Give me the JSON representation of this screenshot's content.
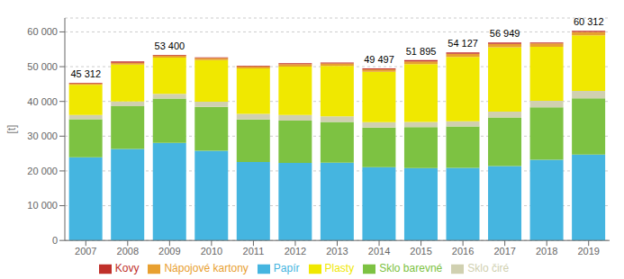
{
  "chart_data": {
    "type": "bar",
    "stacked": true,
    "grid": true,
    "legend": "bottom",
    "ylabel": "[t]",
    "categories": [
      2007,
      2008,
      2009,
      2010,
      2011,
      2012,
      2013,
      2014,
      2015,
      2016,
      2017,
      2018,
      2019
    ],
    "series": [
      {
        "name": "Papír",
        "color": "#45b5e0",
        "values": [
          23900,
          26300,
          28100,
          25800,
          22600,
          22300,
          22400,
          21100,
          20800,
          20900,
          21400,
          23200,
          24700
        ]
      },
      {
        "name": "Sklo barevné",
        "color": "#7dc242",
        "values": [
          11000,
          12300,
          12700,
          12600,
          12200,
          12200,
          11700,
          11400,
          11800,
          11900,
          14000,
          15100,
          16200
        ]
      },
      {
        "name": "Sklo čiré",
        "color": "#d0d0b0",
        "values": [
          1200,
          1400,
          1400,
          1500,
          1600,
          1600,
          1600,
          1500,
          1500,
          1500,
          1700,
          1900,
          2100
        ]
      },
      {
        "name": "Plasty",
        "color": "#f0e800",
        "values": [
          8700,
          10600,
          10400,
          12000,
          13100,
          13900,
          14500,
          14500,
          16600,
          18500,
          18500,
          15500,
          16000
        ]
      },
      {
        "name": "Nápojové kartony",
        "color": "#e8a030",
        "values": [
          300,
          500,
          600,
          600,
          600,
          700,
          700,
          700,
          800,
          900,
          950,
          1000,
          1000
        ]
      },
      {
        "name": "Kovy",
        "color": "#c0302a",
        "values": [
          212,
          400,
          200,
          200,
          200,
          300,
          300,
          297,
          395,
          427,
          399,
          249,
          312
        ]
      }
    ],
    "totals": [
      45312,
      null,
      53400,
      null,
      null,
      null,
      null,
      49497,
      51895,
      54127,
      56949,
      null,
      60312
    ],
    "total_labels": [
      "45 312",
      null,
      "53 400",
      null,
      null,
      null,
      null,
      "49 497",
      "51 895",
      "54 127",
      "56 949",
      null,
      "60 312"
    ],
    "ylim": [
      0,
      64000
    ],
    "yticks": [
      0,
      {
        "value": 10000,
        "label": "10 000"
      },
      {
        "value": 20000,
        "label": "20 000"
      },
      {
        "value": 30000,
        "label": "30 000"
      },
      {
        "value": 40000,
        "label": "40 000"
      },
      {
        "value": 50000,
        "label": "50 000"
      },
      {
        "value": 60000,
        "label": "60 000"
      }
    ]
  }
}
